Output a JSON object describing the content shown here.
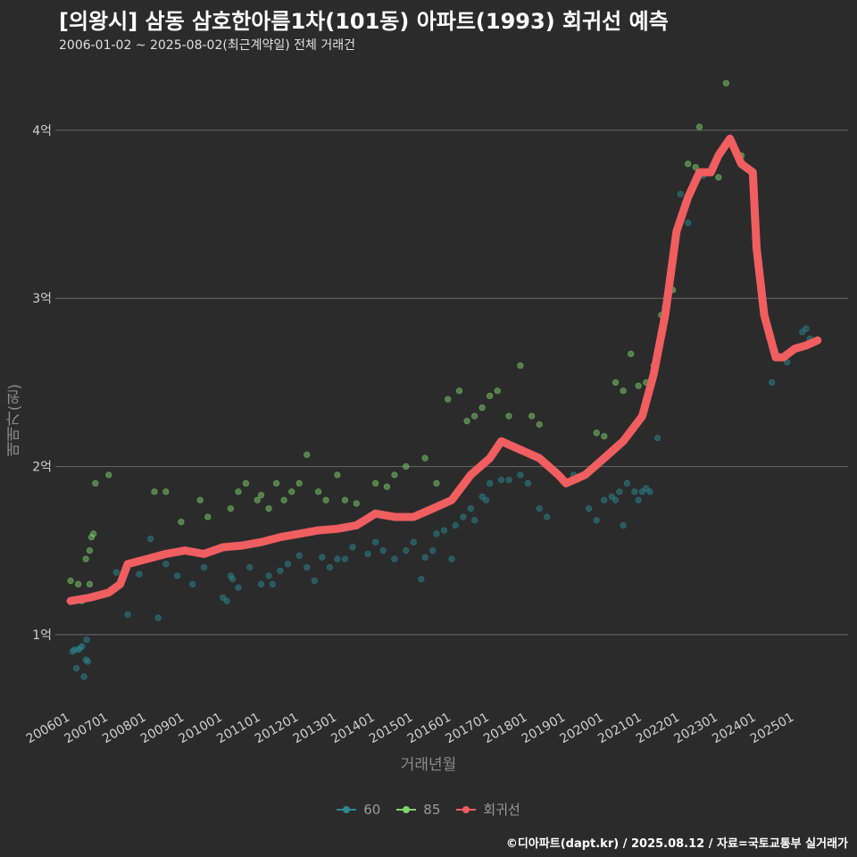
{
  "title": "[의왕시] 삼동 삼호한아름1차(101동) 아파트(1993) 회귀선 예측",
  "subtitle": "2006-01-02 ~ 2025-08-02(최근계약일) 전체 거래건",
  "credit": "©디아파트(dapt.kr) / 2025.08.12 / 자료=국토교통부 실거래가",
  "chart_data": {
    "type": "scatter",
    "xlabel": "거래년월",
    "ylabel": "매매가(원)",
    "x_ticks": [
      "200601",
      "200701",
      "200801",
      "200901",
      "201001",
      "201101",
      "201201",
      "201301",
      "201401",
      "201501",
      "201601",
      "201701",
      "201801",
      "201901",
      "202001",
      "202101",
      "202201",
      "202301",
      "202401",
      "202501"
    ],
    "y_ticks": [
      "1억",
      "2억",
      "3억",
      "4억"
    ],
    "y_tick_values": [
      1,
      2,
      3,
      4
    ],
    "ylim": [
      0.58,
      4.35
    ],
    "xlim": [
      2005.6,
      2026.4
    ],
    "grid": true,
    "legend_position": "bottom",
    "legend": [
      "60",
      "85",
      "회귀선"
    ],
    "colors": {
      "s60": "#2a8a8f",
      "s85": "#7ed36a",
      "reg": "#f15e60"
    },
    "series": [
      {
        "name": "60",
        "points": [
          [
            2006.05,
            0.9
          ],
          [
            2006.1,
            0.91
          ],
          [
            2006.15,
            0.8
          ],
          [
            2006.2,
            0.91
          ],
          [
            2006.25,
            0.92
          ],
          [
            2006.3,
            0.93
          ],
          [
            2006.35,
            0.75
          ],
          [
            2006.4,
            0.85
          ],
          [
            2006.42,
            0.97
          ],
          [
            2006.45,
            0.84
          ],
          [
            2007.2,
            1.37
          ],
          [
            2007.5,
            1.12
          ],
          [
            2007.8,
            1.36
          ],
          [
            2008.1,
            1.57
          ],
          [
            2008.3,
            1.1
          ],
          [
            2008.5,
            1.42
          ],
          [
            2008.8,
            1.35
          ],
          [
            2009.2,
            1.3
          ],
          [
            2009.5,
            1.4
          ],
          [
            2010.0,
            1.22
          ],
          [
            2010.1,
            1.2
          ],
          [
            2010.2,
            1.35
          ],
          [
            2010.25,
            1.33
          ],
          [
            2010.4,
            1.28
          ],
          [
            2010.7,
            1.4
          ],
          [
            2011.0,
            1.3
          ],
          [
            2011.2,
            1.35
          ],
          [
            2011.3,
            1.3
          ],
          [
            2011.5,
            1.38
          ],
          [
            2011.7,
            1.42
          ],
          [
            2012.0,
            1.47
          ],
          [
            2012.2,
            1.4
          ],
          [
            2012.4,
            1.32
          ],
          [
            2012.6,
            1.46
          ],
          [
            2012.8,
            1.4
          ],
          [
            2013.0,
            1.45
          ],
          [
            2013.2,
            1.45
          ],
          [
            2013.4,
            1.52
          ],
          [
            2013.8,
            1.48
          ],
          [
            2014.0,
            1.55
          ],
          [
            2014.2,
            1.5
          ],
          [
            2014.5,
            1.45
          ],
          [
            2014.8,
            1.5
          ],
          [
            2015.0,
            1.55
          ],
          [
            2015.2,
            1.33
          ],
          [
            2015.3,
            1.46
          ],
          [
            2015.5,
            1.5
          ],
          [
            2015.6,
            1.6
          ],
          [
            2015.8,
            1.62
          ],
          [
            2016.0,
            1.45
          ],
          [
            2016.1,
            1.65
          ],
          [
            2016.3,
            1.7
          ],
          [
            2016.5,
            1.75
          ],
          [
            2016.6,
            1.68
          ],
          [
            2016.8,
            1.82
          ],
          [
            2016.9,
            1.8
          ],
          [
            2017.0,
            1.9
          ],
          [
            2017.3,
            1.92
          ],
          [
            2017.5,
            1.92
          ],
          [
            2017.8,
            1.95
          ],
          [
            2018.0,
            1.9
          ],
          [
            2018.3,
            1.75
          ],
          [
            2018.5,
            1.7
          ],
          [
            2018.8,
            1.95
          ],
          [
            2019.2,
            1.95
          ],
          [
            2019.6,
            1.75
          ],
          [
            2019.8,
            1.68
          ],
          [
            2020.0,
            1.8
          ],
          [
            2020.2,
            1.82
          ],
          [
            2020.3,
            1.8
          ],
          [
            2020.4,
            1.85
          ],
          [
            2020.5,
            1.65
          ],
          [
            2020.6,
            1.9
          ],
          [
            2020.8,
            1.85
          ],
          [
            2020.9,
            1.8
          ],
          [
            2021.0,
            1.85
          ],
          [
            2021.1,
            1.87
          ],
          [
            2021.2,
            1.85
          ],
          [
            2021.4,
            2.17
          ],
          [
            2022.0,
            3.62
          ],
          [
            2022.2,
            3.45
          ],
          [
            2022.6,
            3.73
          ],
          [
            2024.4,
            2.5
          ],
          [
            2024.8,
            2.62
          ],
          [
            2025.2,
            2.8
          ],
          [
            2025.3,
            2.82
          ],
          [
            2025.4,
            2.76
          ]
        ]
      },
      {
        "name": "85",
        "points": [
          [
            2006.0,
            1.32
          ],
          [
            2006.2,
            1.3
          ],
          [
            2006.3,
            1.2
          ],
          [
            2006.4,
            1.45
          ],
          [
            2006.5,
            1.5
          ],
          [
            2006.55,
            1.58
          ],
          [
            2006.6,
            1.6
          ],
          [
            2006.65,
            1.9
          ],
          [
            2006.5,
            1.3
          ],
          [
            2007.0,
            1.95
          ],
          [
            2008.2,
            1.85
          ],
          [
            2008.5,
            1.85
          ],
          [
            2008.9,
            1.67
          ],
          [
            2009.4,
            1.8
          ],
          [
            2009.6,
            1.7
          ],
          [
            2010.2,
            1.75
          ],
          [
            2010.4,
            1.85
          ],
          [
            2010.6,
            1.9
          ],
          [
            2010.9,
            1.8
          ],
          [
            2011.0,
            1.83
          ],
          [
            2011.2,
            1.75
          ],
          [
            2011.4,
            1.9
          ],
          [
            2011.6,
            1.8
          ],
          [
            2011.8,
            1.85
          ],
          [
            2012.0,
            1.9
          ],
          [
            2012.2,
            2.07
          ],
          [
            2012.5,
            1.85
          ],
          [
            2012.7,
            1.8
          ],
          [
            2013.0,
            1.95
          ],
          [
            2013.2,
            1.8
          ],
          [
            2013.5,
            1.78
          ],
          [
            2014.0,
            1.9
          ],
          [
            2014.3,
            1.88
          ],
          [
            2014.5,
            1.95
          ],
          [
            2014.8,
            2.0
          ],
          [
            2015.3,
            2.05
          ],
          [
            2015.6,
            1.9
          ],
          [
            2015.9,
            2.4
          ],
          [
            2016.2,
            2.45
          ],
          [
            2016.4,
            2.27
          ],
          [
            2016.6,
            2.3
          ],
          [
            2016.8,
            2.35
          ],
          [
            2017.0,
            2.42
          ],
          [
            2017.2,
            2.45
          ],
          [
            2017.5,
            2.3
          ],
          [
            2017.8,
            2.6
          ],
          [
            2018.1,
            2.3
          ],
          [
            2018.3,
            2.25
          ],
          [
            2019.8,
            2.2
          ],
          [
            2020.0,
            2.18
          ],
          [
            2020.3,
            2.5
          ],
          [
            2020.5,
            2.45
          ],
          [
            2020.7,
            2.67
          ],
          [
            2020.9,
            2.48
          ],
          [
            2021.1,
            2.5
          ],
          [
            2021.3,
            2.6
          ],
          [
            2021.5,
            2.9
          ],
          [
            2021.6,
            2.95
          ],
          [
            2021.8,
            3.05
          ],
          [
            2022.2,
            3.8
          ],
          [
            2022.4,
            3.78
          ],
          [
            2022.5,
            4.02
          ],
          [
            2023.0,
            3.72
          ],
          [
            2023.2,
            4.28
          ],
          [
            2023.6,
            3.85
          ]
        ]
      }
    ],
    "regression": [
      [
        2006.0,
        1.2
      ],
      [
        2006.5,
        1.22
      ],
      [
        2007.0,
        1.25
      ],
      [
        2007.3,
        1.3
      ],
      [
        2007.5,
        1.42
      ],
      [
        2008.0,
        1.45
      ],
      [
        2008.5,
        1.48
      ],
      [
        2009.0,
        1.5
      ],
      [
        2009.5,
        1.48
      ],
      [
        2010.0,
        1.52
      ],
      [
        2010.5,
        1.53
      ],
      [
        2011.0,
        1.55
      ],
      [
        2011.5,
        1.58
      ],
      [
        2012.0,
        1.6
      ],
      [
        2012.5,
        1.62
      ],
      [
        2013.0,
        1.63
      ],
      [
        2013.5,
        1.65
      ],
      [
        2014.0,
        1.72
      ],
      [
        2014.5,
        1.7
      ],
      [
        2015.0,
        1.7
      ],
      [
        2015.5,
        1.75
      ],
      [
        2016.0,
        1.8
      ],
      [
        2016.5,
        1.95
      ],
      [
        2017.0,
        2.05
      ],
      [
        2017.3,
        2.15
      ],
      [
        2017.8,
        2.1
      ],
      [
        2018.3,
        2.05
      ],
      [
        2018.8,
        1.95
      ],
      [
        2019.0,
        1.9
      ],
      [
        2019.5,
        1.95
      ],
      [
        2020.0,
        2.05
      ],
      [
        2020.5,
        2.15
      ],
      [
        2021.0,
        2.3
      ],
      [
        2021.3,
        2.55
      ],
      [
        2021.6,
        2.9
      ],
      [
        2021.9,
        3.4
      ],
      [
        2022.2,
        3.6
      ],
      [
        2022.5,
        3.75
      ],
      [
        2022.8,
        3.75
      ],
      [
        2023.0,
        3.85
      ],
      [
        2023.3,
        3.95
      ],
      [
        2023.6,
        3.8
      ],
      [
        2023.9,
        3.75
      ],
      [
        2024.0,
        3.3
      ],
      [
        2024.2,
        2.9
      ],
      [
        2024.5,
        2.65
      ],
      [
        2024.7,
        2.65
      ],
      [
        2025.0,
        2.7
      ],
      [
        2025.3,
        2.72
      ],
      [
        2025.6,
        2.75
      ]
    ]
  }
}
